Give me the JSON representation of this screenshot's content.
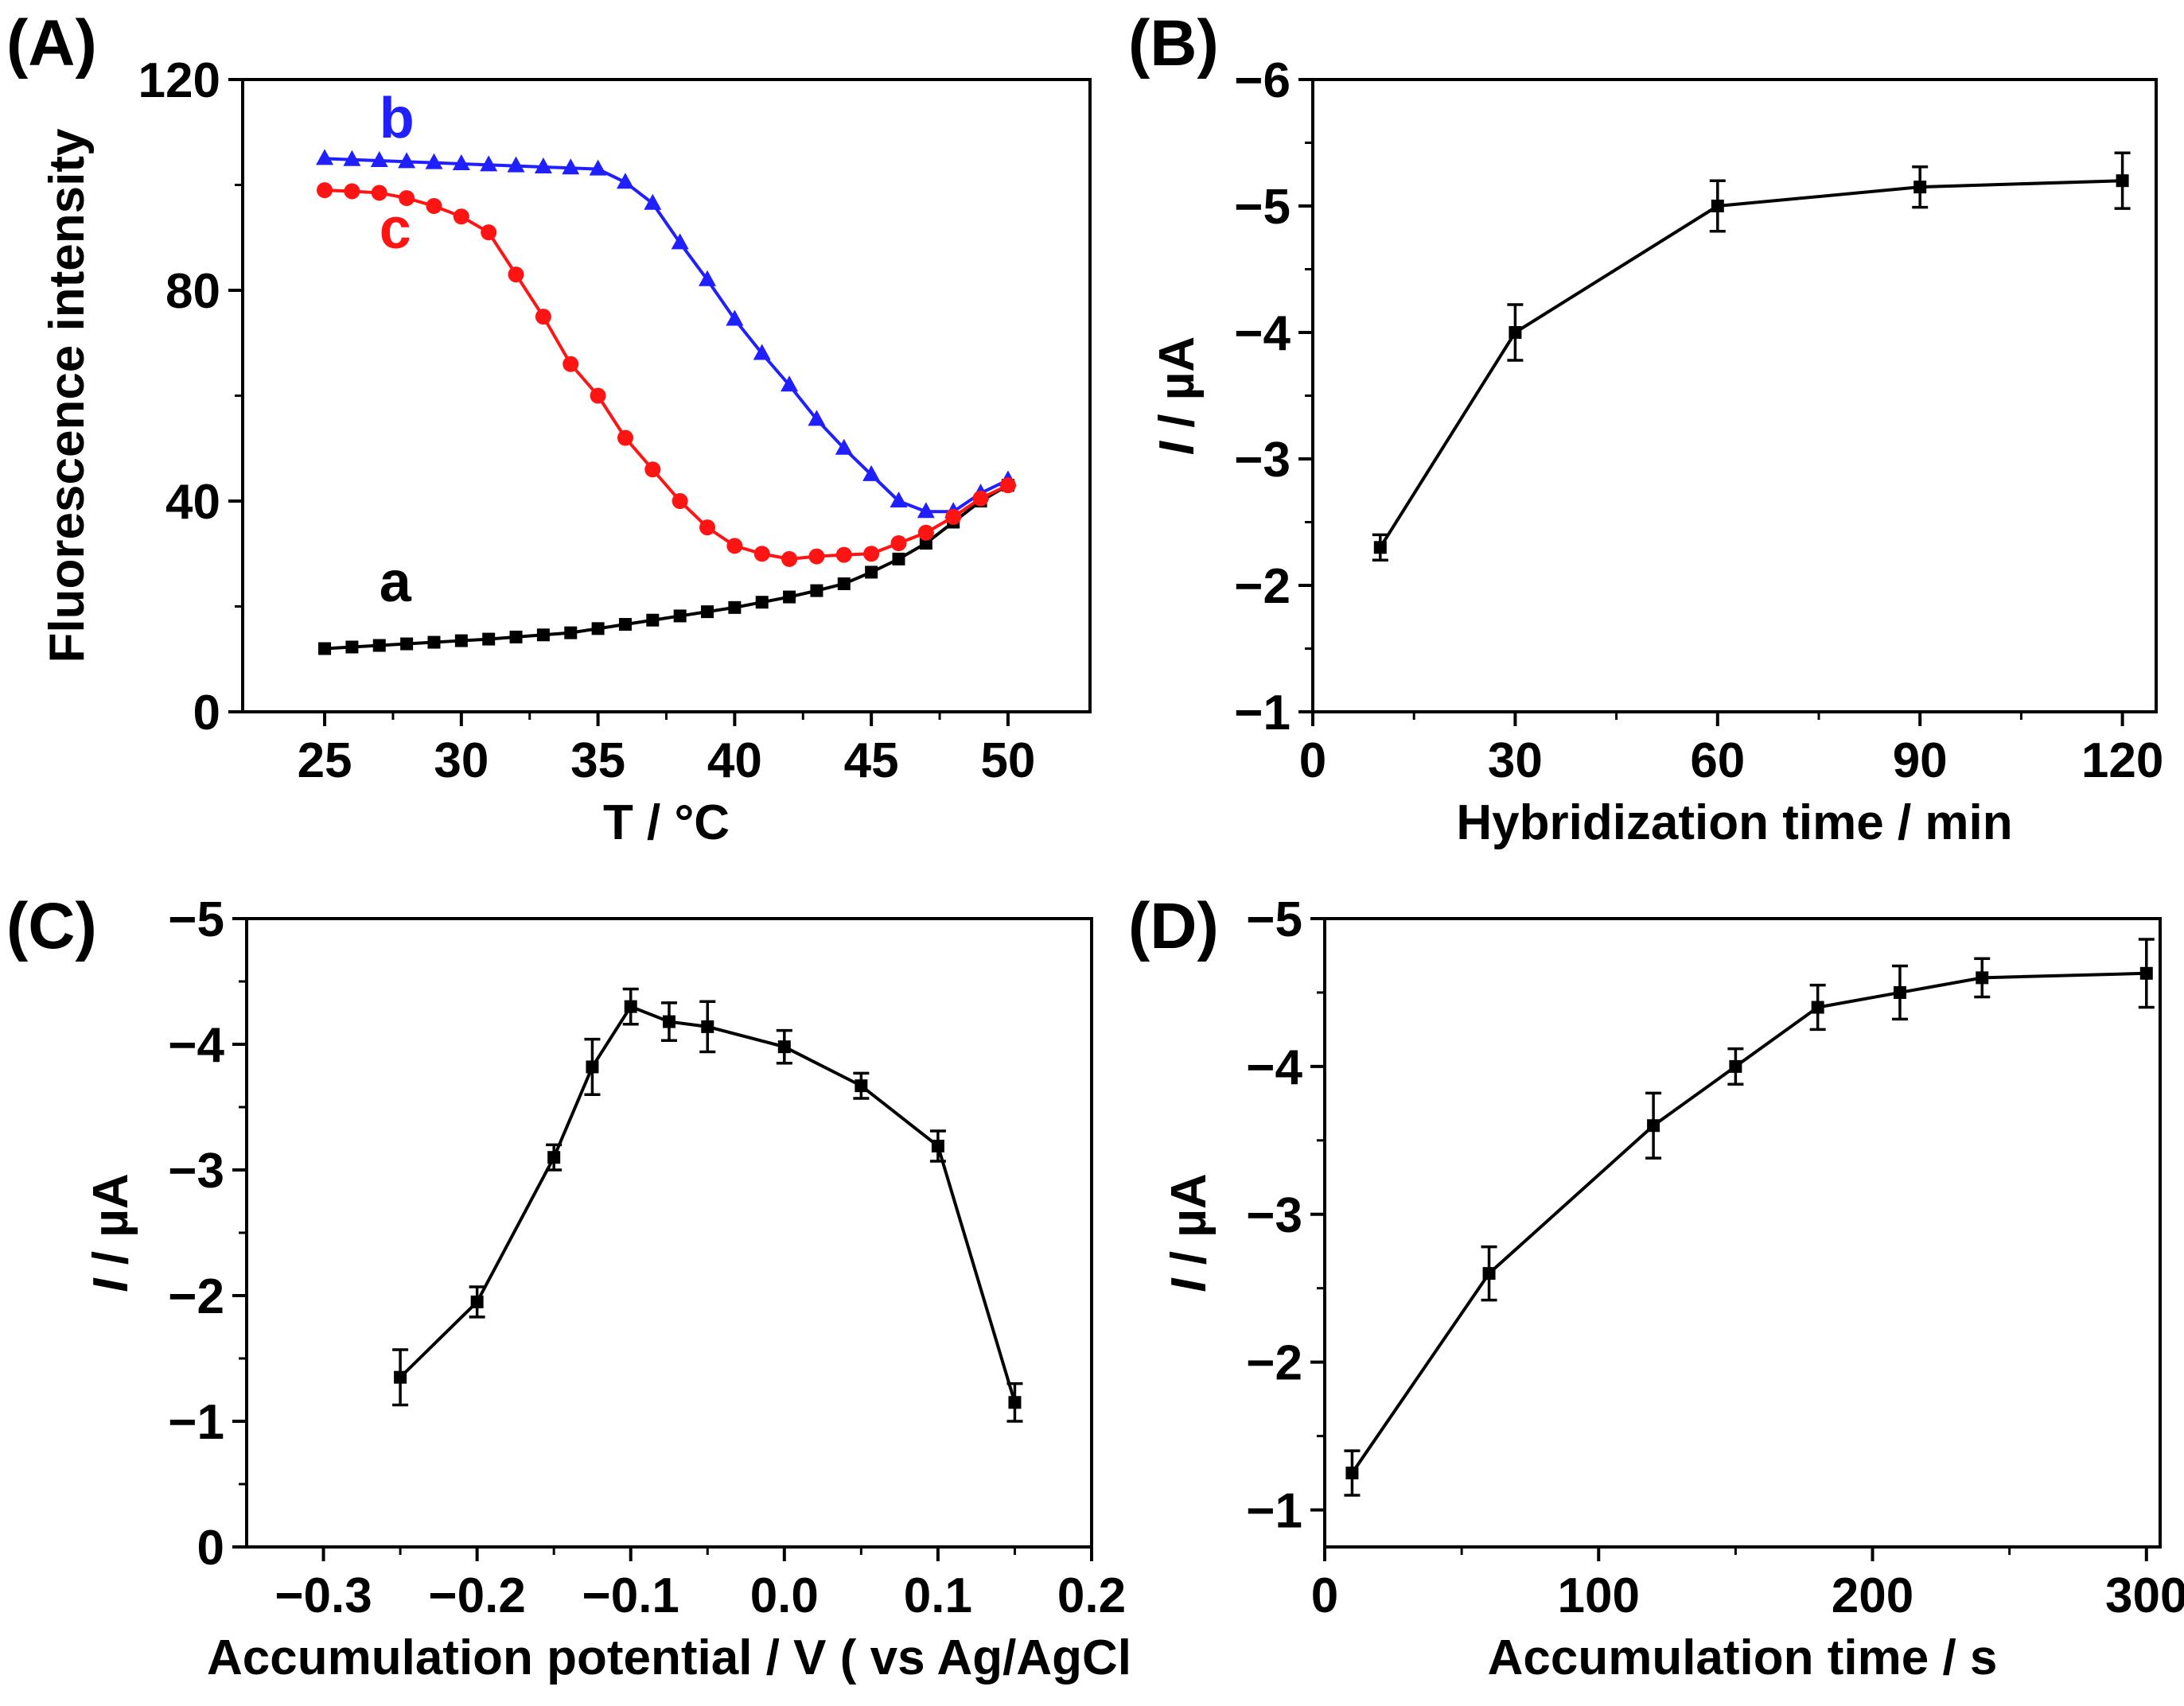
{
  "chart_data": [
    {
      "panel": "(A)",
      "type": "line",
      "xlabel": "T / °C",
      "ylabel": "Fluorescence intensity",
      "xlim": [
        22,
        53
      ],
      "ylim": [
        0,
        120
      ],
      "xticks": [
        25,
        30,
        35,
        40,
        45,
        50
      ],
      "yticks": [
        0,
        40,
        80,
        120
      ],
      "xtick_labels": [
        "25",
        "30",
        "35",
        "40",
        "45",
        "50"
      ],
      "ytick_labels": [
        "0",
        "40",
        "80",
        "120"
      ],
      "grid": false,
      "series": [
        {
          "name": "a",
          "color": "#000000",
          "marker": "square",
          "x": [
            25,
            26,
            27,
            28,
            29,
            30,
            31,
            32,
            33,
            34,
            35,
            36,
            37,
            38,
            39,
            40,
            41,
            42,
            43,
            44,
            45,
            46,
            47,
            48,
            49,
            50
          ],
          "y": [
            12,
            12.3,
            12.6,
            12.9,
            13.2,
            13.5,
            13.8,
            14.2,
            14.6,
            15,
            15.8,
            16.6,
            17.4,
            18.2,
            19,
            19.8,
            20.8,
            21.8,
            23,
            24.3,
            26.5,
            29,
            32,
            36,
            40,
            43
          ]
        },
        {
          "name": "b",
          "color": "#1f1fff",
          "marker": "triangle",
          "x": [
            25,
            26,
            27,
            28,
            29,
            30,
            31,
            32,
            33,
            34,
            35,
            36,
            37,
            38,
            39,
            40,
            41,
            42,
            43,
            44,
            45,
            46,
            47,
            48,
            49,
            50
          ],
          "y": [
            105,
            104.8,
            104.6,
            104.4,
            104.2,
            104,
            103.8,
            103.6,
            103.4,
            103.2,
            103,
            100.5,
            96.5,
            89,
            82,
            74.5,
            68,
            62,
            55.5,
            50,
            45,
            40,
            38,
            38,
            41.5,
            44
          ]
        },
        {
          "name": "c",
          "color": "#ff1414",
          "marker": "circle",
          "x": [
            25,
            26,
            27,
            28,
            29,
            30,
            31,
            32,
            33,
            34,
            35,
            36,
            37,
            38,
            39,
            40,
            41,
            42,
            43,
            44,
            45,
            46,
            47,
            48,
            49,
            50
          ],
          "y": [
            99,
            98.8,
            98.5,
            97.5,
            96,
            94,
            91,
            83,
            75,
            66,
            60,
            52,
            46,
            40,
            35,
            31.5,
            30,
            29,
            29.5,
            29.8,
            30,
            32,
            34,
            37,
            40.5,
            43
          ]
        }
      ],
      "curve_labels": [
        {
          "text": "a",
          "color": "#000000",
          "x": 27,
          "y": 21
        },
        {
          "text": "b",
          "color": "#1f1fff",
          "x": 27,
          "y": 109
        },
        {
          "text": "c",
          "color": "#ff1414",
          "x": 27,
          "y": 88
        }
      ]
    },
    {
      "panel": "(B)",
      "type": "line",
      "xlabel": "Hybridization time / min",
      "ylabel_italic": "I",
      "ylabel_rest": " / µA",
      "xlim": [
        0,
        125
      ],
      "ylim": [
        -6,
        -1
      ],
      "y_reversed": true,
      "xticks": [
        0,
        30,
        60,
        90,
        120
      ],
      "yticks": [
        -1,
        -2,
        -3,
        -4,
        -5,
        -6
      ],
      "xtick_labels": [
        "0",
        "30",
        "60",
        "90",
        "120"
      ],
      "ytick_labels": [
        "−1",
        "−2",
        "−3",
        "−4",
        "−5",
        "−6"
      ],
      "grid": false,
      "series": [
        {
          "color": "#000000",
          "marker": "square",
          "x": [
            10,
            30,
            60,
            90,
            120
          ],
          "y": [
            -2.3,
            -4,
            -5,
            -5.15,
            -5.2
          ],
          "yerr": [
            0.1,
            0.22,
            0.2,
            0.16,
            0.22
          ]
        }
      ]
    },
    {
      "panel": "(C)",
      "type": "line",
      "xlabel": "Accumulation potential / V ( vs Ag/AgCl",
      "ylabel_italic": "I",
      "ylabel_rest": " / µA",
      "xlim": [
        -0.35,
        0.2
      ],
      "ylim": [
        -5,
        0
      ],
      "y_reversed": true,
      "xticks": [
        -0.3,
        -0.2,
        -0.1,
        0.0,
        0.1,
        0.2
      ],
      "yticks": [
        0,
        -1,
        -2,
        -3,
        -4,
        -5
      ],
      "xtick_labels": [
        "−0.3",
        "−0.2",
        "−0.1",
        "0.0",
        "0.1",
        "0.2"
      ],
      "ytick_labels": [
        "0",
        "−1",
        "−2",
        "−3",
        "−4",
        "−5"
      ],
      "grid": false,
      "series": [
        {
          "color": "#000000",
          "marker": "square",
          "x": [
            -0.25,
            -0.2,
            -0.15,
            -0.125,
            -0.1,
            -0.075,
            -0.05,
            0.0,
            0.05,
            0.1,
            0.15
          ],
          "y": [
            -1.35,
            -1.95,
            -3.1,
            -3.82,
            -4.3,
            -4.18,
            -4.14,
            -3.98,
            -3.67,
            -3.19,
            -1.15
          ],
          "yerr": [
            0.22,
            0.12,
            0.1,
            0.22,
            0.14,
            0.15,
            0.2,
            0.13,
            0.1,
            0.12,
            0.15
          ]
        }
      ]
    },
    {
      "panel": "(D)",
      "type": "line",
      "xlabel": "Accumulation time / s",
      "ylabel_italic": "I",
      "ylabel_rest": " / µA",
      "xlim": [
        0,
        305
      ],
      "ylim": [
        -5,
        -0.75
      ],
      "y_reversed": true,
      "xticks": [
        0,
        100,
        200,
        300
      ],
      "yticks": [
        -1,
        -2,
        -3,
        -4,
        -5
      ],
      "xtick_labels": [
        "0",
        "100",
        "200",
        "300"
      ],
      "ytick_labels": [
        "−1",
        "−2",
        "−3",
        "−4",
        "−5"
      ],
      "grid": false,
      "series": [
        {
          "color": "#000000",
          "marker": "square",
          "x": [
            10,
            60,
            120,
            150,
            180,
            210,
            240,
            300
          ],
          "y": [
            -1.25,
            -2.6,
            -3.6,
            -4,
            -4.4,
            -4.5,
            -4.6,
            -4.63
          ],
          "yerr": [
            0.15,
            0.18,
            0.22,
            0.12,
            0.15,
            0.18,
            0.13,
            0.23
          ]
        }
      ]
    }
  ]
}
